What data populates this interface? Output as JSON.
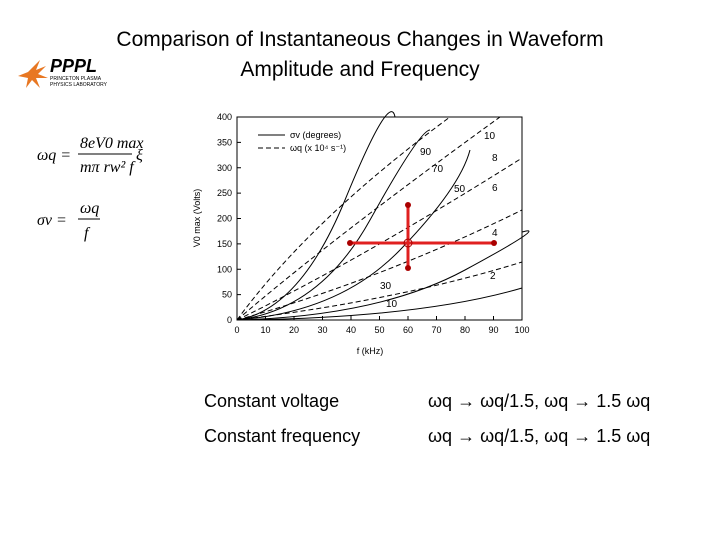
{
  "header": {
    "title_lines": [
      "Comparison of Instantaneous Changes in Waveform",
      "Amplitude and Frequency"
    ],
    "logo": "PPPL",
    "logo_sub": [
      "PRINCETON PLASMA",
      "PHYSICS LABORATORY"
    ]
  },
  "equations": [
    {
      "lhs": "ωq =",
      "numerator": "8eV0 max",
      "denominator": "mπ rw² f",
      "factor": "ξ"
    },
    {
      "lhs": "σv =",
      "numerator": "ωq",
      "denominator": "f"
    }
  ],
  "chart_data": {
    "type": "line",
    "xlabel": "f (kHz)",
    "ylabel": "V0 max (Volts)",
    "xlim": [
      0,
      100
    ],
    "xticks": [
      0,
      10,
      20,
      30,
      40,
      50,
      60,
      70,
      80,
      90,
      100
    ],
    "ylim": [
      0,
      400
    ],
    "yticks": [
      0,
      50,
      100,
      150,
      200,
      250,
      300,
      350,
      400
    ],
    "legend": [
      "σv (degrees)",
      "ωq (x 10⁴ s⁻¹)"
    ],
    "solid_labels": [
      "10",
      "30",
      "50",
      "70",
      "90"
    ],
    "dashed_labels": [
      "2",
      "4",
      "6",
      "8",
      "10"
    ]
  },
  "table": {
    "rows": [
      [
        "Constant voltage",
        "ωq → ωq/1.5, ωq → 1.5 ωq"
      ],
      [
        "Constant frequency",
        "ωq → ωq/1.5, ωq → 1.5 ωq"
      ]
    ]
  }
}
